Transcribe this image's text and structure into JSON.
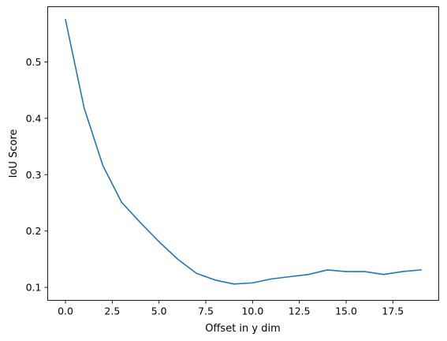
{
  "chart_data": {
    "type": "line",
    "title": "",
    "xlabel": "Offset in y dim",
    "ylabel": "IoU Score",
    "xlim": [
      -0.95,
      19.95
    ],
    "ylim": [
      0.077,
      0.598
    ],
    "xticks": [
      0.0,
      2.5,
      5.0,
      7.5,
      10.0,
      12.5,
      15.0,
      17.5
    ],
    "xtick_labels": [
      "0.0",
      "2.5",
      "5.0",
      "7.5",
      "10.0",
      "12.5",
      "15.0",
      "17.5"
    ],
    "yticks": [
      0.1,
      0.2,
      0.3,
      0.4,
      0.5
    ],
    "ytick_labels": [
      "0.1",
      "0.2",
      "0.3",
      "0.4",
      "0.5"
    ],
    "grid": false,
    "legend": "none",
    "series": [
      {
        "color": "#1f77b4",
        "x": [
          0,
          1,
          2,
          3,
          4,
          5,
          6,
          7,
          8,
          9,
          10,
          11,
          12,
          13,
          14,
          15,
          16,
          17,
          18,
          19
        ],
        "y": [
          0.575,
          0.418,
          0.316,
          0.251,
          0.215,
          0.181,
          0.15,
          0.125,
          0.113,
          0.106,
          0.108,
          0.115,
          0.119,
          0.123,
          0.131,
          0.128,
          0.128,
          0.123,
          0.128,
          0.131
        ]
      }
    ]
  }
}
